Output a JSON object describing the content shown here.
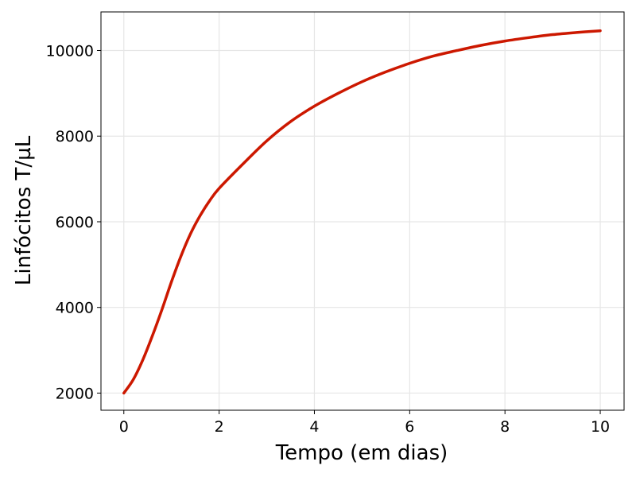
{
  "chart_data": {
    "type": "line",
    "title": "",
    "xlabel": "Tempo (em dias)",
    "ylabel": "Linfócitos T/µL",
    "xlim": [
      -0.48,
      10.5
    ],
    "ylim": [
      1600,
      10900
    ],
    "xticks": [
      0,
      2,
      4,
      6,
      8,
      10
    ],
    "yticks": [
      2000,
      4000,
      6000,
      8000,
      10000
    ],
    "xtick_labels": [
      "0",
      "2",
      "4",
      "6",
      "8",
      "10"
    ],
    "ytick_labels": [
      "2000",
      "4000",
      "6000",
      "8000",
      "10000"
    ],
    "grid": true,
    "legend": "none",
    "series": [
      {
        "color": "#cc1800",
        "x": [
          0,
          0.2,
          0.4,
          0.6,
          0.8,
          1.0,
          1.2,
          1.4,
          1.6,
          1.8,
          2.0,
          2.5,
          3.0,
          3.5,
          4.0,
          4.5,
          5.0,
          5.5,
          6.0,
          6.5,
          7.0,
          7.5,
          8.0,
          8.5,
          9.0,
          9.5,
          10.0
        ],
        "y": [
          2000,
          2320,
          2780,
          3340,
          3950,
          4600,
          5200,
          5720,
          6140,
          6490,
          6780,
          7350,
          7890,
          8340,
          8700,
          9000,
          9270,
          9500,
          9700,
          9870,
          10000,
          10120,
          10220,
          10300,
          10370,
          10420,
          10460
        ]
      }
    ]
  }
}
